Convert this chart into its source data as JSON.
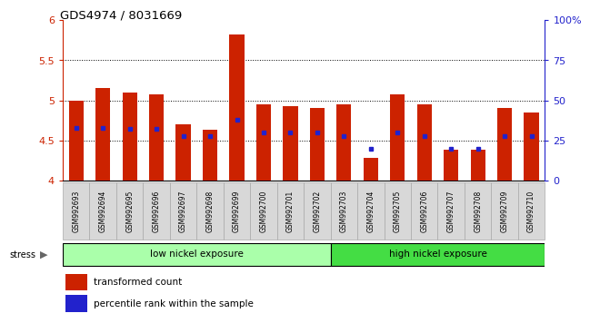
{
  "title": "GDS4974 / 8031669",
  "samples": [
    "GSM992693",
    "GSM992694",
    "GSM992695",
    "GSM992696",
    "GSM992697",
    "GSM992698",
    "GSM992699",
    "GSM992700",
    "GSM992701",
    "GSM992702",
    "GSM992703",
    "GSM992704",
    "GSM992705",
    "GSM992706",
    "GSM992707",
    "GSM992708",
    "GSM992709",
    "GSM992710"
  ],
  "transformed_count": [
    5.0,
    5.15,
    5.1,
    5.07,
    4.7,
    4.63,
    5.82,
    4.95,
    4.93,
    4.91,
    4.95,
    4.28,
    5.07,
    4.95,
    4.38,
    4.38,
    4.9,
    4.85
  ],
  "percentile_rank": [
    33,
    33,
    32,
    32,
    28,
    28,
    38,
    30,
    30,
    30,
    28,
    20,
    30,
    28,
    20,
    20,
    28,
    28
  ],
  "ymin": 4.0,
  "ymax": 6.0,
  "yticks_left": [
    4.0,
    4.5,
    5.0,
    5.5,
    6.0
  ],
  "ytick_labels_left": [
    "4",
    "4.5",
    "5",
    "5.5",
    "6"
  ],
  "yticks_right_pct": [
    0,
    25,
    50,
    75,
    100
  ],
  "ytick_labels_right": [
    "0",
    "25",
    "50",
    "75",
    "100%"
  ],
  "bar_color": "#cc2200",
  "marker_color": "#2222cc",
  "background_color": "#ffffff",
  "group1_label": "low nickel exposure",
  "group2_label": "high nickel exposure",
  "n_group1": 10,
  "group1_color": "#aaffaa",
  "group2_color": "#44dd44",
  "stress_label": "stress",
  "legend_red": "transformed count",
  "legend_blue": "percentile rank within the sample",
  "bar_width": 0.55,
  "grid_yticks": [
    4.5,
    5.0,
    5.5
  ],
  "left_axis_color": "#cc2200",
  "right_axis_color": "#2222cc",
  "label_box_color": "#d8d8d8",
  "label_box_edge_color": "#aaaaaa"
}
